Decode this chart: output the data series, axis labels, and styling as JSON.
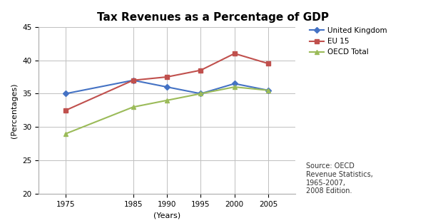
{
  "title": "Tax Revenues as a Percentage of GDP",
  "xlabel": "(Years)",
  "ylabel": "(Percentages)",
  "years": [
    1975,
    1985,
    1990,
    1995,
    2000,
    2005
  ],
  "series": {
    "United Kingdom": {
      "values": [
        35.0,
        37.0,
        36.0,
        35.0,
        36.5,
        35.5
      ],
      "color": "#4472C4",
      "marker": "D"
    },
    "EU 15": {
      "values": [
        32.5,
        37.0,
        37.5,
        38.5,
        41.0,
        39.5
      ],
      "color": "#C0504D",
      "marker": "s"
    },
    "OECD Total": {
      "values": [
        29.0,
        33.0,
        34.0,
        35.0,
        36.0,
        35.5
      ],
      "color": "#9BBB59",
      "marker": "^"
    }
  },
  "ylim": [
    20,
    45
  ],
  "yticks": [
    20,
    25,
    30,
    35,
    40,
    45
  ],
  "source_text": "Source: OECD\nRevenue Statistics,\n1965-2007,\n2008 Edition.",
  "bg_color": "#FFFFFF",
  "plot_bg_color": "#FFFFFF",
  "grid_color": "#C0C0C0",
  "title_fontsize": 11,
  "axis_label_fontsize": 8,
  "tick_fontsize": 7.5,
  "legend_fontsize": 7.5,
  "source_fontsize": 7
}
